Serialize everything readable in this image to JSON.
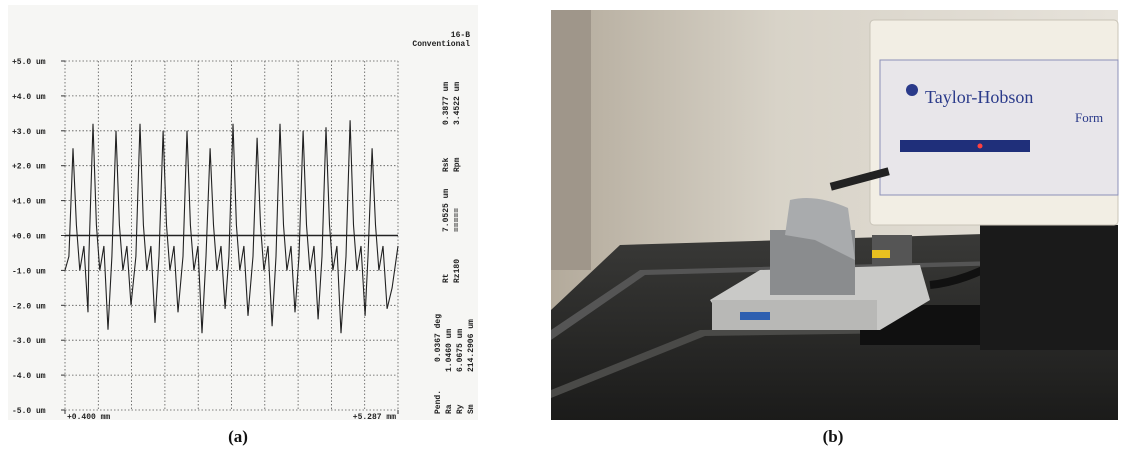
{
  "chart_data": {
    "type": "line",
    "caption": "(a)",
    "sample_id": "16-B",
    "method": "Conventional",
    "x": [
      0.4,
      0.457,
      0.517,
      0.567,
      0.617,
      0.677,
      0.737,
      0.751,
      0.811,
      0.861,
      0.911,
      0.971,
      1.031,
      1.089,
      1.149,
      1.199,
      1.249,
      1.309,
      1.369,
      1.441,
      1.501,
      1.551,
      1.601,
      1.661,
      1.721,
      1.779,
      1.839,
      1.889,
      1.939,
      1.999,
      2.059,
      2.131,
      2.191,
      2.241,
      2.291,
      2.351,
      2.411,
      2.469,
      2.529,
      2.579,
      2.629,
      2.689,
      2.749,
      2.806,
      2.866,
      2.916,
      2.966,
      3.026,
      3.086,
      3.159,
      3.219,
      3.269,
      3.319,
      3.379,
      3.439,
      3.496,
      3.556,
      3.606,
      3.656,
      3.716,
      3.776,
      3.834,
      3.894,
      3.944,
      3.994,
      4.054,
      4.114,
      4.171,
      4.231,
      4.281,
      4.331,
      4.391,
      4.451,
      4.524,
      4.584,
      4.634,
      4.684,
      4.744,
      4.804,
      4.847,
      4.907,
      4.957,
      5.007,
      5.067,
      5.127,
      5.2,
      5.287
    ],
    "values": [
      -1.0,
      -0.6,
      2.5,
      0.3,
      -1.0,
      -0.3,
      -2.2,
      -0.6,
      3.2,
      0.3,
      -1.0,
      -0.3,
      -2.7,
      -0.6,
      3.0,
      0.3,
      -1.0,
      -0.3,
      -2.0,
      -0.6,
      3.2,
      0.3,
      -1.0,
      -0.3,
      -2.5,
      -0.6,
      3.0,
      0.3,
      -1.0,
      -0.3,
      -2.2,
      -0.6,
      3.0,
      0.3,
      -1.0,
      -0.3,
      -2.8,
      -0.6,
      2.5,
      0.3,
      -1.0,
      -0.3,
      -2.1,
      -0.6,
      3.2,
      0.3,
      -1.0,
      -0.3,
      -2.3,
      -0.6,
      2.8,
      0.3,
      -1.0,
      -0.3,
      -2.6,
      -0.6,
      3.2,
      0.3,
      -1.0,
      -0.3,
      -2.2,
      -0.6,
      3.0,
      0.3,
      -1.0,
      -0.3,
      -2.4,
      -0.6,
      3.1,
      0.3,
      -1.0,
      -0.3,
      -2.8,
      -0.6,
      3.3,
      0.3,
      -1.0,
      -0.3,
      -2.3,
      -0.6,
      2.5,
      0.3,
      -1.0,
      -0.3,
      -2.1,
      -1.5,
      -0.3
    ],
    "color": "#222222",
    "xlim": [
      0.4,
      5.287
    ],
    "xticks": [
      {
        "value": 0.4,
        "label": "+0.400 mm"
      },
      {
        "value": 5.287,
        "label": "+5.287 mm"
      }
    ],
    "ylim": [
      -5,
      5
    ],
    "yticks": [
      {
        "value": -5,
        "label": "-5.0 um"
      },
      {
        "value": -4,
        "label": "-4.0 um"
      },
      {
        "value": -3,
        "label": "-3.0 um"
      },
      {
        "value": -2,
        "label": "-2.0 um"
      },
      {
        "value": -1,
        "label": "-1.0 um"
      },
      {
        "value": 0,
        "label": "+0.0 um"
      },
      {
        "value": 1,
        "label": "+1.0 um"
      },
      {
        "value": 2,
        "label": "+2.0 um"
      },
      {
        "value": 3,
        "label": "+3.0 um"
      },
      {
        "value": 4,
        "label": "+4.0 um"
      },
      {
        "value": 5,
        "label": "+5.0 um"
      }
    ],
    "grid": true,
    "parameters": [
      {
        "label": "Rsk",
        "value": "0.3877 um"
      },
      {
        "label": "Rpm",
        "value": "3.4522 um"
      },
      {
        "label": "Rt",
        "value": "7.0525 um"
      },
      {
        "label": "Rz180",
        "value": "====="
      },
      {
        "label": "Pend.",
        "value": "0.0367 deg"
      },
      {
        "label": "Ra",
        "value": "1.0460 um"
      },
      {
        "label": "Ry",
        "value": "6.0675 um"
      },
      {
        "label": "Sm",
        "value": "214.2906 um"
      }
    ]
  },
  "photo": {
    "caption": "(b)",
    "brand": "Taylor-Hobson",
    "model": "Form"
  }
}
